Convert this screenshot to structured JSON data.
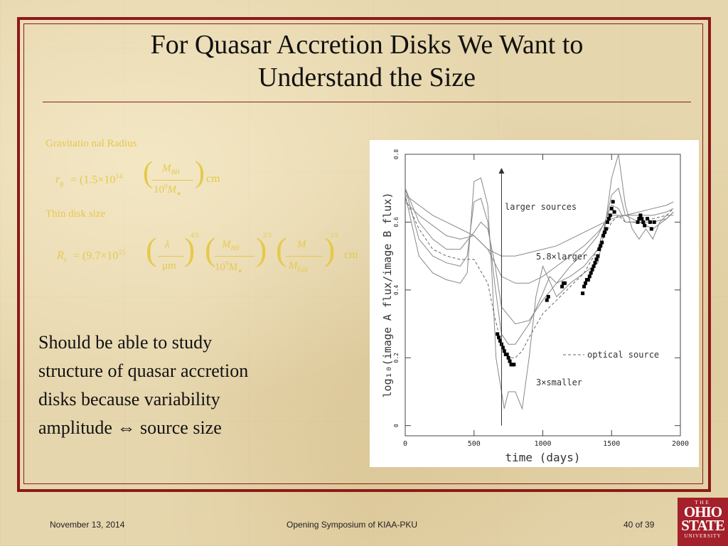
{
  "slide": {
    "title_lines": [
      "For Quasar Accretion Disks We Want to",
      "Understand the Size"
    ],
    "eq_gravitational_label": "Gravitatio nal Radius",
    "eq_rg_lhs": "r",
    "eq_rg_sub": "g",
    "eq_rg_coeff": "= (1.5×10",
    "eq_rg_exp": "14",
    "eq_rg_num": "M",
    "eq_rg_num_sub": "BH",
    "eq_rg_den": "10",
    "eq_rg_den_exp": "9",
    "eq_rg_den_m": "M",
    "eq_rg_unit": "cm",
    "eq_thin_label": "Thin disk size",
    "eq_rs_lhs": "R",
    "eq_rs_sub": "s",
    "eq_rs_coeff": "= (9.7×10",
    "eq_rs_exp": "15",
    "eq_rs_f1_num": "λ",
    "eq_rs_f1_den": "μm",
    "eq_rs_f1_exp": "4/3",
    "eq_rs_f2_num": "M",
    "eq_rs_f2_num_sub": "BH",
    "eq_rs_f2_den": "10",
    "eq_rs_f2_den_exp": "9",
    "eq_rs_f2_den_m": "M",
    "eq_rs_f2_exp": "2/3",
    "eq_rs_f3_num": "M",
    "eq_rs_f3_den": "M",
    "eq_rs_f3_den_sub": "Edd",
    "eq_rs_f3_exp": "1/3",
    "eq_rs_unit": "cm",
    "body_lines": [
      "Should be able to study",
      "structure of quasar accretion",
      "disks because variability",
      "amplitude ⇔ source size"
    ]
  },
  "footer": {
    "date": "November 13, 2014",
    "event": "Opening Symposium of KIAA-PKU",
    "page": "40 of 39"
  },
  "logo": {
    "the": "THE",
    "line1": "OHIO",
    "line2": "STATE",
    "line3": "UNIVERSITY"
  },
  "colors": {
    "frame": "#8b1a1a",
    "equation_text": "#e5c94a",
    "logo_bg": "#a4202a"
  },
  "chart_data": {
    "type": "line",
    "xlabel": "time (days)",
    "ylabel": "log₁₀(image A flux/image B flux)",
    "xlim": [
      0,
      2000
    ],
    "ylim": [
      -0.03,
      0.8
    ],
    "xticks": [
      0,
      500,
      1000,
      1500,
      2000
    ],
    "yticks": [
      0,
      0.2,
      0.4,
      0.6,
      0.8
    ],
    "annotations": {
      "larger_sources": "larger sources",
      "larger_5_8": "5.8×larger",
      "optical_source": "optical source",
      "smaller_3": "3×smaller"
    },
    "arrow": {
      "x": 700,
      "y_from": 0.0,
      "y_to": 0.76
    },
    "series": [
      {
        "style": "solid",
        "x": [
          0,
          100,
          200,
          300,
          400,
          500,
          600,
          700,
          800,
          900,
          1000,
          1100,
          1200,
          1300,
          1400,
          1500,
          1600,
          1700,
          1800,
          1900,
          1950
        ],
        "y": [
          0.68,
          0.65,
          0.62,
          0.6,
          0.58,
          0.56,
          0.52,
          0.5,
          0.5,
          0.51,
          0.52,
          0.53,
          0.55,
          0.57,
          0.59,
          0.61,
          0.62,
          0.63,
          0.64,
          0.65,
          0.66
        ]
      },
      {
        "style": "solid",
        "x": [
          0,
          100,
          200,
          300,
          400,
          500,
          600,
          650,
          700,
          800,
          900,
          1000,
          1100,
          1200,
          1300,
          1400,
          1500,
          1600,
          1700,
          1800,
          1900,
          1950
        ],
        "y": [
          0.66,
          0.62,
          0.59,
          0.56,
          0.55,
          0.56,
          0.52,
          0.48,
          0.44,
          0.42,
          0.42,
          0.44,
          0.47,
          0.5,
          0.53,
          0.57,
          0.62,
          0.62,
          0.62,
          0.62,
          0.63,
          0.64
        ]
      },
      {
        "style": "solid",
        "x": [
          0,
          100,
          200,
          300,
          400,
          500,
          550,
          600,
          650,
          700,
          800,
          900,
          1000,
          1100,
          1200,
          1300,
          1400,
          1450,
          1500,
          1550,
          1600,
          1700,
          1800,
          1900,
          1950
        ],
        "y": [
          0.7,
          0.6,
          0.55,
          0.52,
          0.52,
          0.57,
          0.6,
          0.58,
          0.48,
          0.35,
          0.3,
          0.31,
          0.37,
          0.42,
          0.47,
          0.51,
          0.56,
          0.6,
          0.65,
          0.64,
          0.6,
          0.6,
          0.6,
          0.61,
          0.63
        ]
      },
      {
        "style": "solid",
        "x": [
          0,
          100,
          200,
          300,
          400,
          450,
          500,
          550,
          600,
          650,
          700,
          750,
          800,
          900,
          1000,
          1050,
          1100,
          1200,
          1300,
          1400,
          1450,
          1500,
          1550,
          1600,
          1700,
          1800,
          1900,
          1950
        ],
        "y": [
          0.7,
          0.55,
          0.5,
          0.48,
          0.47,
          0.5,
          0.66,
          0.67,
          0.6,
          0.42,
          0.27,
          0.24,
          0.24,
          0.3,
          0.39,
          0.44,
          0.42,
          0.44,
          0.47,
          0.52,
          0.59,
          0.68,
          0.7,
          0.62,
          0.6,
          0.58,
          0.61,
          0.63
        ]
      },
      {
        "style": "solid",
        "x": [
          0,
          100,
          200,
          300,
          400,
          450,
          500,
          550,
          600,
          630,
          660,
          700,
          720,
          750,
          800,
          850,
          900,
          950,
          1000,
          1100,
          1200,
          1300,
          1400,
          1450,
          1500,
          1550,
          1600,
          1650,
          1700,
          1750,
          1800,
          1850,
          1900,
          1950
        ],
        "y": [
          0.68,
          0.5,
          0.45,
          0.43,
          0.42,
          0.45,
          0.72,
          0.73,
          0.65,
          0.45,
          0.2,
          0.1,
          0.05,
          0.1,
          0.1,
          0.05,
          0.2,
          0.38,
          0.47,
          0.38,
          0.42,
          0.45,
          0.48,
          0.58,
          0.73,
          0.8,
          0.65,
          0.58,
          0.55,
          0.58,
          0.55,
          0.6,
          0.62,
          0.62
        ]
      },
      {
        "style": "dashed",
        "x": [
          0,
          100,
          200,
          300,
          400,
          500,
          600,
          650,
          700,
          750,
          800,
          850,
          900,
          1000,
          1100,
          1200,
          1300,
          1400,
          1450,
          1500,
          1550,
          1600,
          1700,
          1800,
          1900,
          1950
        ],
        "y": [
          0.67,
          0.58,
          0.52,
          0.5,
          0.49,
          0.49,
          0.42,
          0.32,
          0.24,
          0.2,
          0.2,
          0.22,
          0.26,
          0.33,
          0.37,
          0.41,
          0.45,
          0.52,
          0.56,
          0.6,
          0.62,
          0.6,
          0.6,
          0.61,
          0.62,
          0.64
        ]
      },
      {
        "style": "points",
        "x": [
          670,
          680,
          690,
          700,
          710,
          720,
          730,
          740,
          750,
          760,
          770,
          780,
          790,
          1030,
          1040,
          1140,
          1150,
          1160,
          1290,
          1300,
          1310,
          1320,
          1330,
          1340,
          1350,
          1360,
          1370,
          1380,
          1390,
          1400,
          1410,
          1420,
          1430,
          1440,
          1450,
          1460,
          1470,
          1480,
          1490,
          1500,
          1510,
          1520,
          1690,
          1700,
          1710,
          1720,
          1730,
          1740,
          1760,
          1780,
          1790,
          1810
        ],
        "y": [
          0.27,
          0.26,
          0.25,
          0.24,
          0.23,
          0.22,
          0.21,
          0.21,
          0.2,
          0.19,
          0.18,
          0.18,
          0.18,
          0.37,
          0.38,
          0.41,
          0.42,
          0.42,
          0.39,
          0.41,
          0.42,
          0.43,
          0.43,
          0.44,
          0.45,
          0.46,
          0.47,
          0.48,
          0.49,
          0.5,
          0.52,
          0.53,
          0.54,
          0.56,
          0.57,
          0.58,
          0.6,
          0.61,
          0.62,
          0.64,
          0.66,
          0.63,
          0.6,
          0.61,
          0.62,
          0.61,
          0.6,
          0.59,
          0.61,
          0.6,
          0.58,
          0.6
        ]
      }
    ]
  }
}
